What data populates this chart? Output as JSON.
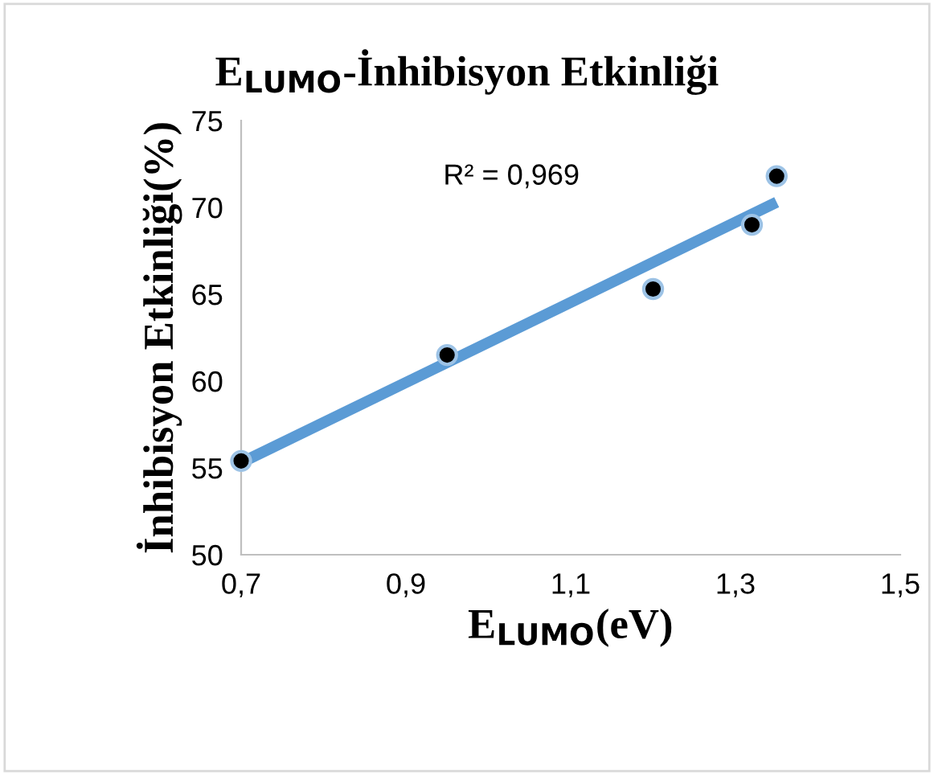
{
  "chart_data": {
    "type": "scatter",
    "title": "E$_{LUMO}$-İnhibisyon Etkinliği",
    "xlabel": "E$_{LUMO}$(eV)",
    "ylabel": "İnhibisyon Etkinliği(%)",
    "xlim": [
      0.7,
      1.5
    ],
    "ylim": [
      50,
      75
    ],
    "xticks": [
      {
        "value": 0.7,
        "label": "0,7"
      },
      {
        "value": 0.9,
        "label": "0,9"
      },
      {
        "value": 1.1,
        "label": "1,1"
      },
      {
        "value": 1.3,
        "label": "1,3"
      },
      {
        "value": 1.5,
        "label": "1,5"
      }
    ],
    "yticks": [
      50,
      55,
      60,
      65,
      70,
      75
    ],
    "grid": false,
    "legend": false,
    "series": [
      {
        "marker": "circle",
        "color": "#000000",
        "x": [
          0.7,
          0.95,
          1.2,
          1.32,
          1.35
        ],
        "values": [
          55.4,
          61.5,
          65.3,
          69.0,
          71.8
        ]
      },
      {
        "type": "line",
        "marker": "none",
        "color": "#5b9bd5",
        "x": [
          0.7,
          1.35
        ],
        "values": [
          55.3,
          70.3
        ]
      }
    ],
    "annotations": [
      "R² = 0,969"
    ]
  }
}
